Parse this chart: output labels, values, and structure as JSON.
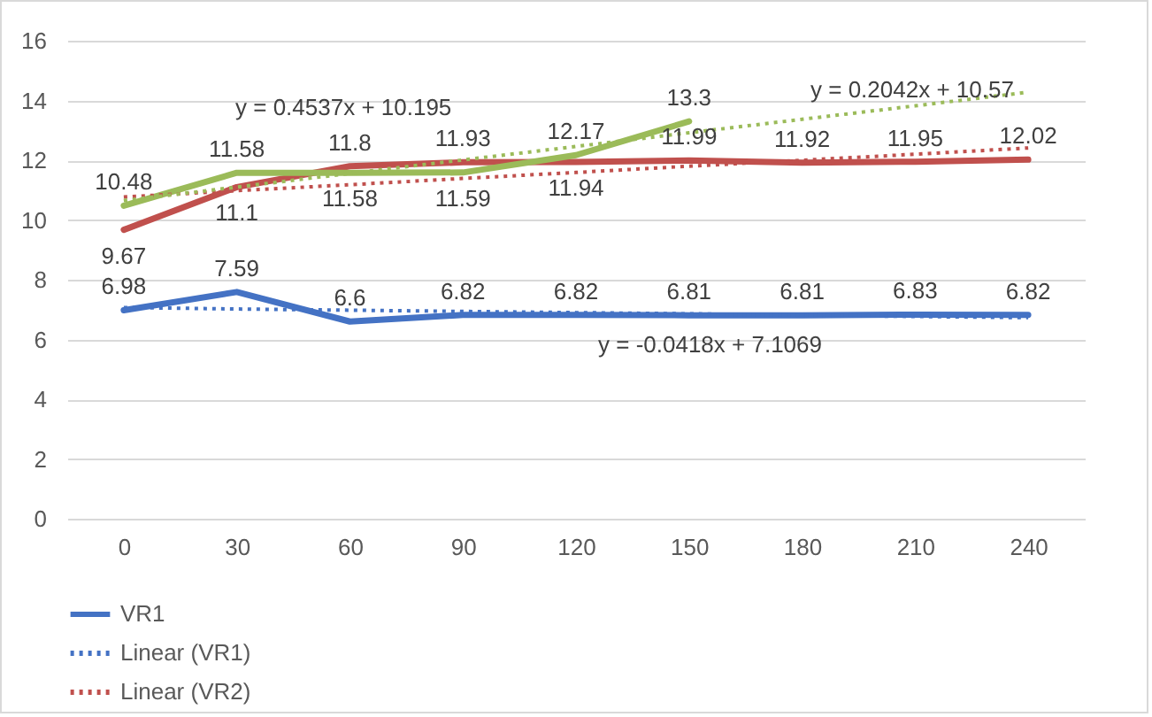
{
  "chart_data": {
    "type": "line",
    "categories": [
      "0",
      "30",
      "60",
      "90",
      "120",
      "150",
      "180",
      "210",
      "240"
    ],
    "ylim": [
      0,
      16
    ],
    "yticks": [
      0,
      2,
      4,
      6,
      8,
      10,
      12,
      14,
      16
    ],
    "grid": "y",
    "legend": "bottom",
    "marker": "none",
    "series": [
      {
        "name": "VR1",
        "color": "#4472c4",
        "line_style": "solid",
        "values": [
          6.98,
          7.59,
          6.6,
          6.82,
          6.82,
          6.81,
          6.81,
          6.83,
          6.82
        ],
        "value_labels": [
          "6.98",
          "7.59",
          "6.6",
          "6.82",
          "6.82",
          "6.81",
          "6.81",
          "6.83",
          "6.82"
        ]
      },
      {
        "color": "#c0504d",
        "line_style": "solid",
        "values": [
          9.67,
          11.1,
          11.8,
          11.93,
          11.94,
          11.99,
          11.92,
          11.95,
          12.02
        ],
        "value_labels": [
          "9.67",
          "11.1",
          "11.8",
          "11.93",
          "11.94",
          "11.99",
          "11.92",
          "11.95",
          "12.02"
        ]
      },
      {
        "color": "#9bbb59",
        "line_style": "solid",
        "values": [
          10.48,
          11.58,
          11.58,
          11.59,
          12.17,
          13.3,
          null,
          null,
          null
        ],
        "value_labels": [
          "10.48",
          "11.58",
          "11.58",
          "11.59",
          "12.17",
          "13.3",
          null,
          null,
          null
        ]
      },
      {
        "name": "Linear (VR1)",
        "type": "line",
        "color": "#4472c4",
        "line_style": "dotted",
        "x": [
          "0",
          "30",
          "60",
          "90",
          "120",
          "150",
          "180",
          "210",
          "240"
        ],
        "values": [
          7.07,
          7.02,
          6.98,
          6.94,
          6.9,
          6.86,
          6.81,
          6.77,
          6.73
        ]
      },
      {
        "name": "Linear (VR2)",
        "type": "line",
        "color": "#c0504d",
        "line_style": "dotted",
        "x": [
          "0",
          "30",
          "60",
          "90",
          "120",
          "150",
          "180",
          "210",
          "240"
        ],
        "values": [
          10.77,
          10.98,
          11.18,
          11.39,
          11.59,
          11.8,
          12.0,
          12.2,
          12.41
        ]
      },
      {
        "type": "line",
        "color": "#9bbb59",
        "line_style": "dotted",
        "x": [
          "0",
          "30",
          "60",
          "90",
          "120",
          "150",
          "180",
          "210",
          "240"
        ],
        "values": [
          10.65,
          11.1,
          11.56,
          12.01,
          12.46,
          12.92,
          13.37,
          13.82,
          14.28
        ]
      }
    ],
    "annotations": [
      "y = 0.4537x + 10.195",
      "y = 0.2042x + 10.57",
      "y = -0.0418x + 7.1069"
    ]
  }
}
